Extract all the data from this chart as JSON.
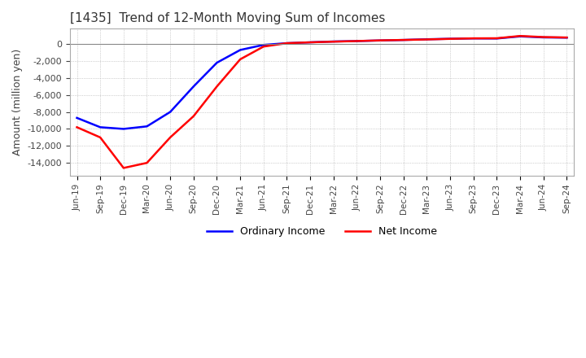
{
  "title": "[1435]  Trend of 12-Month Moving Sum of Incomes",
  "ylabel": "Amount (million yen)",
  "ylim": [
    -15500,
    1800
  ],
  "yticks": [
    0,
    -2000,
    -4000,
    -6000,
    -8000,
    -10000,
    -12000,
    -14000
  ],
  "background_color": "#ffffff",
  "grid_color": "#aaaaaa",
  "ordinary_income_color": "#0000ff",
  "net_income_color": "#ff0000",
  "x_labels": [
    "Jun-19",
    "Sep-19",
    "Dec-19",
    "Mar-20",
    "Jun-20",
    "Sep-20",
    "Dec-20",
    "Mar-21",
    "Jun-21",
    "Sep-21",
    "Dec-21",
    "Mar-22",
    "Jun-22",
    "Sep-22",
    "Dec-22",
    "Mar-23",
    "Jun-23",
    "Sep-23",
    "Dec-23",
    "Mar-24",
    "Jun-24",
    "Sep-24"
  ],
  "ordinary_income": [
    -8700,
    -9800,
    -10000,
    -9700,
    -8000,
    -5000,
    -2200,
    -700,
    -100,
    100,
    200,
    300,
    350,
    420,
    480,
    560,
    620,
    660,
    650,
    900,
    780,
    750
  ],
  "net_income": [
    -9800,
    -11000,
    -14600,
    -14000,
    -11000,
    -8500,
    -5000,
    -1800,
    -300,
    100,
    200,
    280,
    350,
    430,
    480,
    540,
    610,
    670,
    680,
    950,
    820,
    770
  ]
}
